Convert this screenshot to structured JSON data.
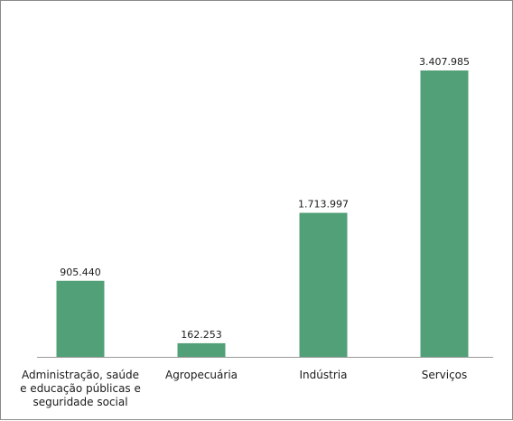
{
  "chart_data": {
    "type": "bar",
    "categories": [
      [
        "Administração, saúde",
        "e educação públicas e",
        "seguridade social"
      ],
      [
        "Agropecuária"
      ],
      [
        "Indústria"
      ],
      [
        "Serviços"
      ]
    ],
    "values": [
      905440,
      162253,
      1713997,
      3407985
    ],
    "value_labels": [
      "905.440",
      "162.253",
      "1.713.997",
      "3.407.985"
    ],
    "title": "",
    "xlabel": "",
    "ylabel": "",
    "ylim": [
      0,
      3407985
    ],
    "grid": false,
    "legend": "none",
    "bar_color": "#52a077",
    "axis_color": "#9a9a9a",
    "text_color": "#1a1a1a"
  }
}
